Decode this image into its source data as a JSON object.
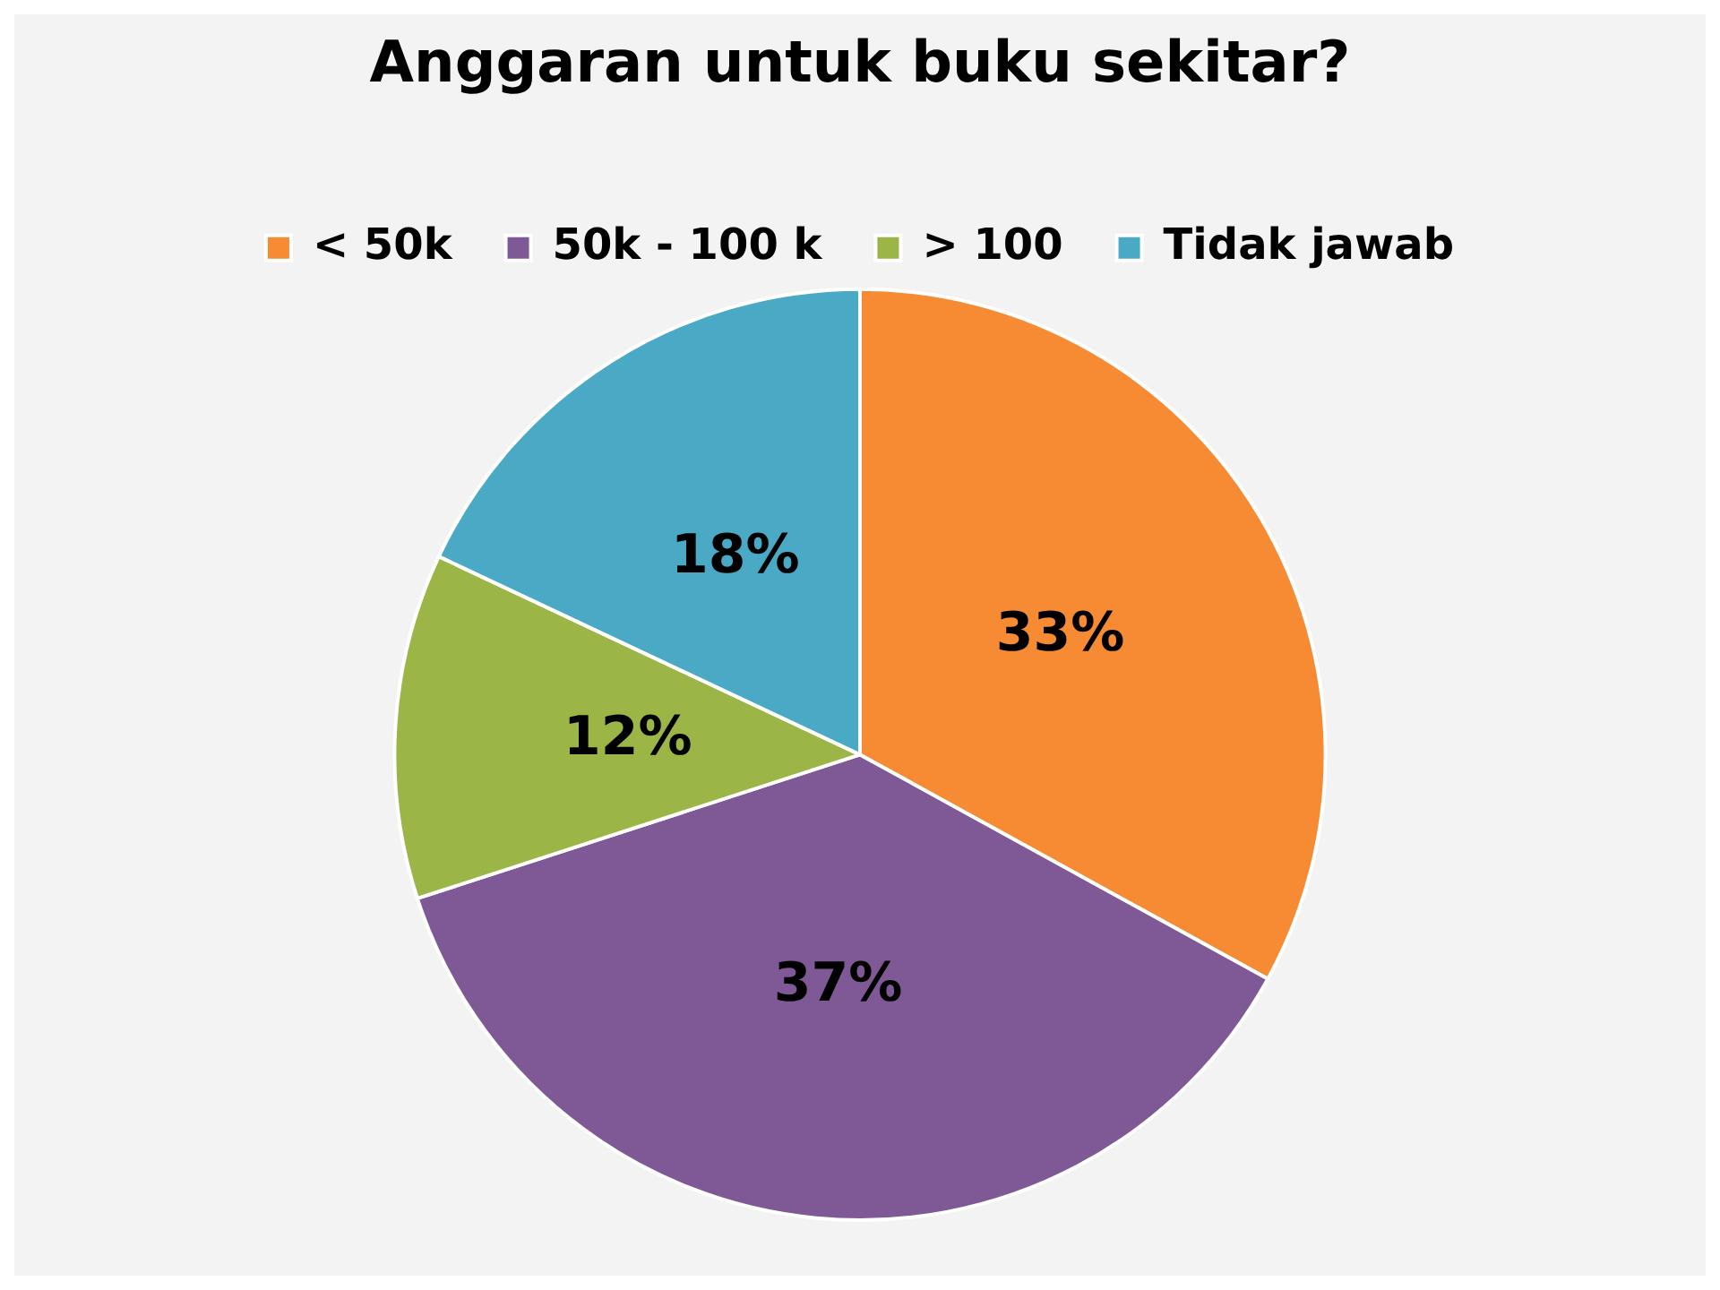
{
  "chart_data": {
    "type": "pie",
    "title": "Anggaran untuk buku sekitar?",
    "categories": [
      "< 50k",
      "50k - 100 k",
      "> 100",
      "Tidak jawab"
    ],
    "values": [
      33,
      37,
      12,
      18
    ],
    "colors": [
      "#f68b33",
      "#7f5896",
      "#9bb546",
      "#4aaac5"
    ],
    "value_labels": [
      "33%",
      "37%",
      "12%",
      "18%"
    ],
    "legend": "top"
  }
}
